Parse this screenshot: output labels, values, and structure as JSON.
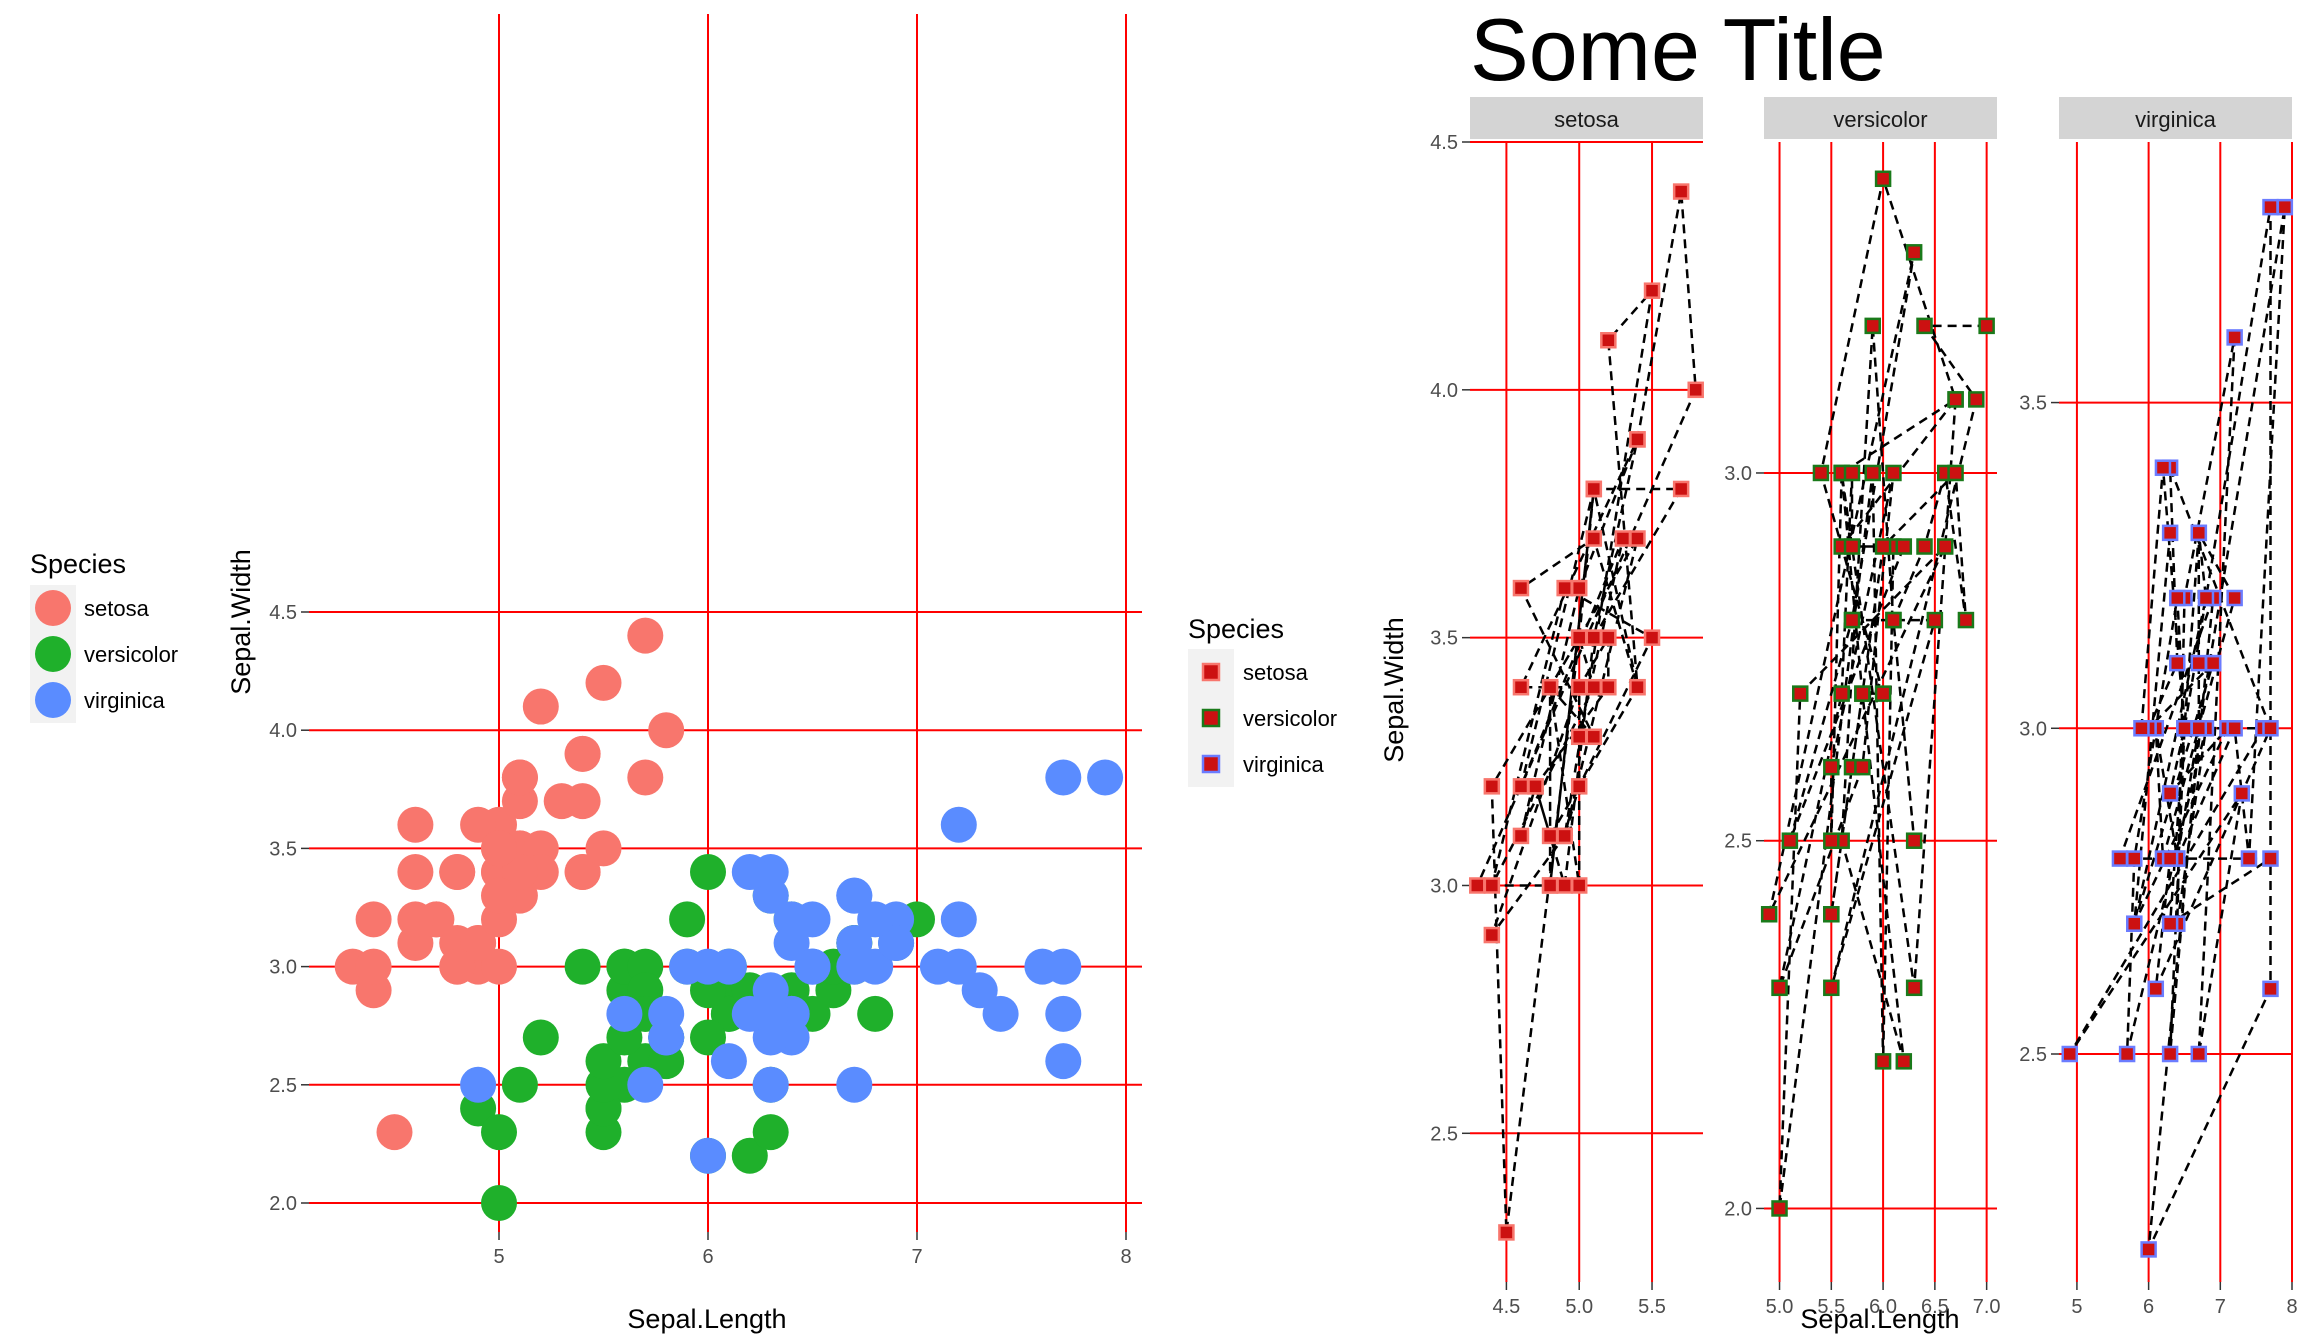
{
  "colors": {
    "grid": "#ff0000",
    "setosa": "#f8766d",
    "versicolor": "#1fb02b",
    "virginica": "#5a8cff",
    "square_fill": "#cc1111",
    "square_border": {
      "setosa": "#f8766d",
      "versicolor": "#1a7a1a",
      "virginica": "#6b7cff"
    },
    "strip_bg": "#d4d4d4",
    "key_bg": "#f2f2f2",
    "path_line": "#000000"
  },
  "left_legend": {
    "title": "Species",
    "items": [
      {
        "label": "setosa",
        "color": "#f8766d"
      },
      {
        "label": "versicolor",
        "color": "#1fb02b"
      },
      {
        "label": "virginica",
        "color": "#5a8cff"
      }
    ]
  },
  "middle_legend": {
    "title": "Species",
    "items": [
      {
        "label": "setosa",
        "border": "#f8766d"
      },
      {
        "label": "versicolor",
        "border": "#1a7a1a"
      },
      {
        "label": "virginica",
        "border": "#6b7cff"
      }
    ]
  },
  "right_title": "Some Title",
  "chart_data": [
    {
      "type": "scatter",
      "title": "",
      "xlabel": "Sepal.Length",
      "ylabel": "Sepal.Width",
      "xlim": [
        4.2,
        8.1
      ],
      "ylim": [
        1.9,
        4.5
      ],
      "xticks": [
        5,
        6,
        7,
        8
      ],
      "yticks": [
        2.0,
        2.5,
        3.0,
        3.5,
        4.0,
        4.5
      ],
      "grid": "major only, red",
      "legend_position": "left",
      "series": [
        {
          "name": "setosa",
          "points": [
            [
              5.1,
              3.5
            ],
            [
              4.9,
              3.0
            ],
            [
              4.7,
              3.2
            ],
            [
              4.6,
              3.1
            ],
            [
              5.0,
              3.6
            ],
            [
              5.4,
              3.9
            ],
            [
              4.6,
              3.4
            ],
            [
              5.0,
              3.4
            ],
            [
              4.4,
              2.9
            ],
            [
              4.9,
              3.1
            ],
            [
              5.4,
              3.7
            ],
            [
              4.8,
              3.4
            ],
            [
              4.8,
              3.0
            ],
            [
              4.3,
              3.0
            ],
            [
              5.8,
              4.0
            ],
            [
              5.7,
              4.4
            ],
            [
              5.4,
              3.9
            ],
            [
              5.1,
              3.5
            ],
            [
              5.7,
              3.8
            ],
            [
              5.1,
              3.8
            ],
            [
              5.4,
              3.4
            ],
            [
              5.1,
              3.7
            ],
            [
              4.6,
              3.6
            ],
            [
              5.1,
              3.3
            ],
            [
              4.8,
              3.4
            ],
            [
              5.0,
              3.0
            ],
            [
              5.0,
              3.4
            ],
            [
              5.2,
              3.5
            ],
            [
              5.2,
              3.4
            ],
            [
              4.7,
              3.2
            ],
            [
              4.8,
              3.1
            ],
            [
              5.4,
              3.4
            ],
            [
              5.2,
              4.1
            ],
            [
              5.5,
              4.2
            ],
            [
              4.9,
              3.1
            ],
            [
              5.0,
              3.2
            ],
            [
              5.5,
              3.5
            ],
            [
              4.9,
              3.6
            ],
            [
              4.4,
              3.0
            ],
            [
              5.1,
              3.4
            ],
            [
              5.0,
              3.5
            ],
            [
              4.5,
              2.3
            ],
            [
              4.4,
              3.2
            ],
            [
              5.0,
              3.5
            ],
            [
              5.1,
              3.8
            ],
            [
              4.8,
              3.0
            ],
            [
              5.1,
              3.8
            ],
            [
              4.6,
              3.2
            ],
            [
              5.3,
              3.7
            ],
            [
              5.0,
              3.3
            ]
          ]
        },
        {
          "name": "versicolor",
          "points": [
            [
              7.0,
              3.2
            ],
            [
              6.4,
              3.2
            ],
            [
              6.9,
              3.1
            ],
            [
              5.5,
              2.3
            ],
            [
              6.5,
              2.8
            ],
            [
              5.7,
              2.8
            ],
            [
              6.3,
              3.3
            ],
            [
              4.9,
              2.4
            ],
            [
              6.6,
              2.9
            ],
            [
              5.2,
              2.7
            ],
            [
              5.0,
              2.0
            ],
            [
              5.9,
              3.0
            ],
            [
              6.0,
              2.2
            ],
            [
              6.1,
              2.9
            ],
            [
              5.6,
              2.9
            ],
            [
              6.7,
              3.1
            ],
            [
              5.6,
              3.0
            ],
            [
              5.8,
              2.7
            ],
            [
              6.2,
              2.2
            ],
            [
              5.6,
              2.5
            ],
            [
              5.9,
              3.2
            ],
            [
              6.1,
              2.8
            ],
            [
              6.3,
              2.5
            ],
            [
              6.1,
              2.8
            ],
            [
              6.4,
              2.9
            ],
            [
              6.6,
              3.0
            ],
            [
              6.8,
              2.8
            ],
            [
              6.7,
              3.0
            ],
            [
              6.0,
              2.9
            ],
            [
              5.7,
              2.6
            ],
            [
              5.5,
              2.4
            ],
            [
              5.5,
              2.4
            ],
            [
              5.8,
              2.7
            ],
            [
              6.0,
              2.7
            ],
            [
              5.4,
              3.0
            ],
            [
              6.0,
              3.4
            ],
            [
              6.7,
              3.1
            ],
            [
              6.3,
              2.3
            ],
            [
              5.6,
              3.0
            ],
            [
              5.5,
              2.5
            ],
            [
              5.5,
              2.6
            ],
            [
              6.1,
              3.0
            ],
            [
              5.8,
              2.6
            ],
            [
              5.0,
              2.3
            ],
            [
              5.6,
              2.7
            ],
            [
              5.7,
              3.0
            ],
            [
              5.7,
              2.9
            ],
            [
              6.2,
              2.9
            ],
            [
              5.1,
              2.5
            ],
            [
              5.7,
              2.8
            ]
          ]
        },
        {
          "name": "virginica",
          "points": [
            [
              6.3,
              3.3
            ],
            [
              5.8,
              2.7
            ],
            [
              7.1,
              3.0
            ],
            [
              6.3,
              2.9
            ],
            [
              6.5,
              3.0
            ],
            [
              7.6,
              3.0
            ],
            [
              4.9,
              2.5
            ],
            [
              7.3,
              2.9
            ],
            [
              6.7,
              2.5
            ],
            [
              7.2,
              3.6
            ],
            [
              6.5,
              3.2
            ],
            [
              6.4,
              2.7
            ],
            [
              6.8,
              3.0
            ],
            [
              5.7,
              2.5
            ],
            [
              5.8,
              2.8
            ],
            [
              6.4,
              3.2
            ],
            [
              6.5,
              3.0
            ],
            [
              7.7,
              3.8
            ],
            [
              7.7,
              2.6
            ],
            [
              6.0,
              2.2
            ],
            [
              6.9,
              3.2
            ],
            [
              5.6,
              2.8
            ],
            [
              7.7,
              2.8
            ],
            [
              6.3,
              2.7
            ],
            [
              6.7,
              3.3
            ],
            [
              7.2,
              3.2
            ],
            [
              6.2,
              2.8
            ],
            [
              6.1,
              3.0
            ],
            [
              6.4,
              2.8
            ],
            [
              7.2,
              3.0
            ],
            [
              7.4,
              2.8
            ],
            [
              7.9,
              3.8
            ],
            [
              6.4,
              2.8
            ],
            [
              6.3,
              2.8
            ],
            [
              6.1,
              2.6
            ],
            [
              7.7,
              3.0
            ],
            [
              6.3,
              3.4
            ],
            [
              6.4,
              3.1
            ],
            [
              6.0,
              3.0
            ],
            [
              6.9,
              3.1
            ],
            [
              6.7,
              3.1
            ],
            [
              6.9,
              3.1
            ],
            [
              5.8,
              2.7
            ],
            [
              6.8,
              3.2
            ],
            [
              6.7,
              3.3
            ],
            [
              6.7,
              3.0
            ],
            [
              6.3,
              2.5
            ],
            [
              6.5,
              3.0
            ],
            [
              6.2,
              3.4
            ],
            [
              5.9,
              3.0
            ]
          ]
        }
      ]
    },
    {
      "type": "line",
      "title": "Some Title",
      "xlabel": "Sepal.Length",
      "ylabel": "Sepal.Width",
      "facets": "Species, free scales",
      "grid": "major only, red",
      "legend_position": "left",
      "panels": [
        {
          "strip": "setosa",
          "xlim": [
            4.25,
            5.85
          ],
          "ylim": [
            2.2,
            4.5
          ],
          "xticks": [
            "4.5",
            "5.0",
            "5.5"
          ],
          "yticks": [
            "2.5",
            "3.0",
            "3.5",
            "4.0",
            "4.5"
          ]
        },
        {
          "strip": "versicolor",
          "xlim": [
            4.85,
            7.1
          ],
          "ylim": [
            1.9,
            3.45
          ],
          "xticks": [
            "5.0",
            "5.5",
            "6.0",
            "6.5",
            "7.0"
          ],
          "yticks": [
            "2.0",
            "2.5",
            "3.0"
          ]
        },
        {
          "strip": "virginica",
          "xlim": [
            4.75,
            8.0
          ],
          "ylim": [
            2.15,
            3.9
          ],
          "xticks": [
            "5",
            "6",
            "7",
            "8"
          ],
          "yticks": [
            "2.5",
            "3.0",
            "3.5"
          ]
        }
      ]
    }
  ]
}
